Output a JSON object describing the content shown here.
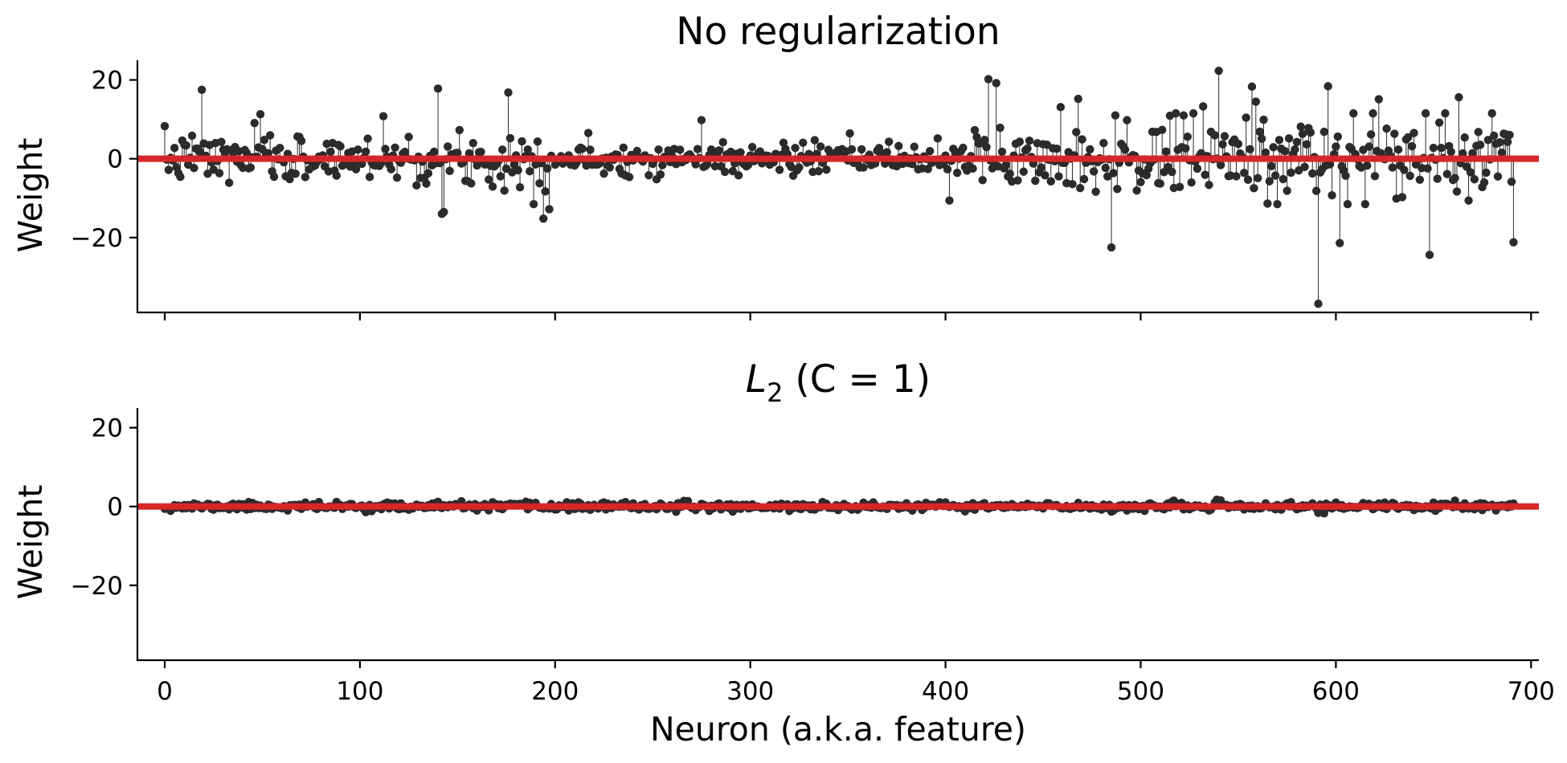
{
  "chart_data": [
    {
      "type": "scatter",
      "title": "No regularization",
      "ylabel": "Weight",
      "xlabel": "",
      "xlim": [
        -14,
        704
      ],
      "ylim": [
        -39,
        25
      ],
      "xticks": [
        0,
        100,
        200,
        300,
        400,
        500,
        600,
        700
      ],
      "xtick_labels": [],
      "yticks": [
        20,
        0,
        -20
      ],
      "ytick_labels": [
        "20",
        "0",
        "−20"
      ],
      "grid": false,
      "style": "stem",
      "n_points": 692,
      "seed": 7,
      "amplitude_profile": [
        {
          "x": [
            0,
            160
          ],
          "sigma": 3.0
        },
        {
          "x": [
            160,
            200
          ],
          "sigma": 4.2
        },
        {
          "x": [
            200,
            415
          ],
          "sigma": 2.0
        },
        {
          "x": [
            415,
            500
          ],
          "sigma": 4.0
        },
        {
          "x": [
            500,
            692
          ],
          "sigma": 5.5
        }
      ],
      "notable_points": [
        {
          "x": 19,
          "y": 17.5
        },
        {
          "x": 49,
          "y": 11.3
        },
        {
          "x": 112,
          "y": 10.8
        },
        {
          "x": 140,
          "y": 17.8
        },
        {
          "x": 142,
          "y": -14.0
        },
        {
          "x": 143,
          "y": -13.5
        },
        {
          "x": 176,
          "y": 16.8
        },
        {
          "x": 194,
          "y": -15.2
        },
        {
          "x": 197,
          "y": -12.8
        },
        {
          "x": 275,
          "y": 9.8
        },
        {
          "x": 402,
          "y": -10.6
        },
        {
          "x": 422,
          "y": 20.2
        },
        {
          "x": 426,
          "y": 19.2
        },
        {
          "x": 459,
          "y": 13.1
        },
        {
          "x": 468,
          "y": 15.2
        },
        {
          "x": 485,
          "y": -22.5
        },
        {
          "x": 487,
          "y": 11.0
        },
        {
          "x": 532,
          "y": 13.3
        },
        {
          "x": 540,
          "y": 22.3
        },
        {
          "x": 557,
          "y": 18.3
        },
        {
          "x": 559,
          "y": 14.5
        },
        {
          "x": 591,
          "y": -36.8
        },
        {
          "x": 596,
          "y": 18.4
        },
        {
          "x": 602,
          "y": -21.4
        },
        {
          "x": 622,
          "y": 15.1
        },
        {
          "x": 648,
          "y": -24.4
        },
        {
          "x": 663,
          "y": 15.6
        },
        {
          "x": 691,
          "y": -21.2
        }
      ],
      "hline": {
        "y": 0,
        "color": "#d62728"
      },
      "marker_color": "#2b2b2b"
    },
    {
      "type": "scatter",
      "title": "L₂ (C = 1)",
      "title_parts": {
        "symbol": "L",
        "subscript": "2",
        "rest": " (C = 1)"
      },
      "ylabel": "Weight",
      "xlabel": "Neuron (a.k.a. feature)",
      "xlim": [
        -14,
        704
      ],
      "ylim": [
        -39,
        25
      ],
      "xticks": [
        0,
        100,
        200,
        300,
        400,
        500,
        600,
        700
      ],
      "xtick_labels": [
        "0",
        "100",
        "200",
        "300",
        "400",
        "500",
        "600",
        "700"
      ],
      "yticks": [
        20,
        0,
        -20
      ],
      "ytick_labels": [
        "20",
        "0",
        "−20"
      ],
      "grid": false,
      "style": "stem",
      "n_points": 692,
      "seed": 11,
      "amplitude_profile": [
        {
          "x": [
            0,
            692
          ],
          "sigma": 0.5
        }
      ],
      "notable_points": [
        {
          "x": 140,
          "y": 1.2
        },
        {
          "x": 485,
          "y": -1.3
        },
        {
          "x": 591,
          "y": -1.6
        }
      ],
      "hline": {
        "y": 0,
        "color": "#d62728"
      },
      "marker_color": "#2b2b2b"
    }
  ]
}
